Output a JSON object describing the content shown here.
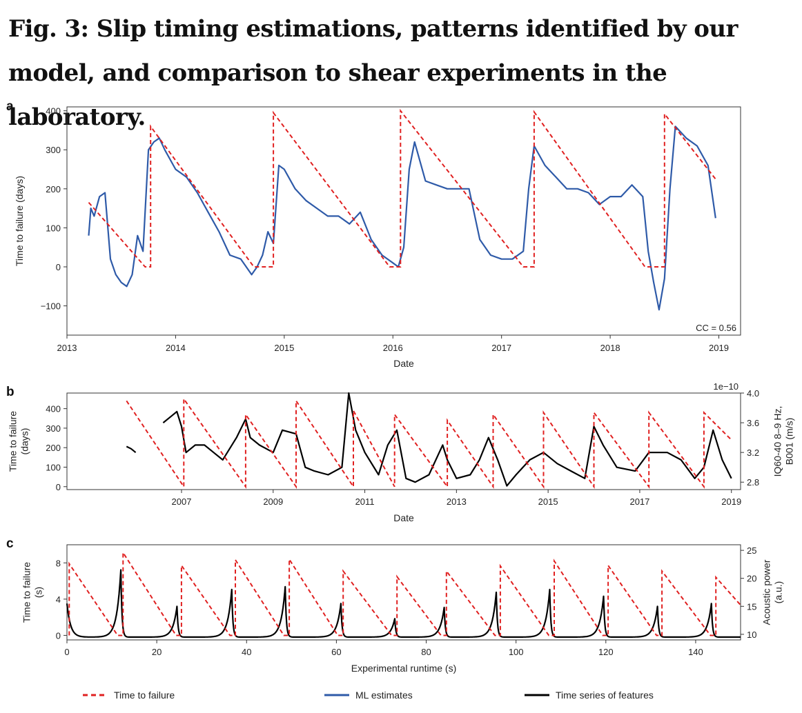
{
  "figure_title": "Fig. 3: Slip timing estimations, patterns identified by our model, and comparison to shear experiments in the laboratory.",
  "colors": {
    "time_to_failure": "#e02020",
    "ml_estimates": "#2e5aa8",
    "features": "#000000"
  },
  "legend": [
    {
      "label": "Time to failure",
      "color": "#e02020",
      "style": "dashed"
    },
    {
      "label": "ML estimates",
      "color": "#2e5aa8",
      "style": "solid"
    },
    {
      "label": "Time series of features",
      "color": "#000000",
      "style": "solid"
    }
  ],
  "chart_data": [
    {
      "panel": "a",
      "type": "line",
      "xlabel": "Date",
      "ylabel": "Time to failure (days)",
      "xlim": [
        2013,
        2019.2
      ],
      "ylim": [
        -175,
        410
      ],
      "x_ticks": [
        "2013",
        "2014",
        "2015",
        "2016",
        "2017",
        "2018",
        "2019"
      ],
      "y_ticks": [
        "400",
        "300",
        "200",
        "100",
        "0",
        "−100"
      ],
      "annotation": "CC = 0.56",
      "series": [
        {
          "name": "Time to failure",
          "style": "dashed",
          "color": "#e02020",
          "x": [
            2013.2,
            2013.72,
            2013.77,
            2013.77,
            2014.72,
            2014.9,
            2014.9,
            2015.97,
            2016.07,
            2016.07,
            2017.2,
            2017.3,
            2017.3,
            2018.32,
            2018.5,
            2018.5,
            2018.97
          ],
          "y": [
            165,
            0,
            0,
            360,
            0,
            0,
            395,
            0,
            0,
            400,
            0,
            0,
            397,
            0,
            0,
            392,
            225
          ]
        },
        {
          "name": "ML estimates",
          "style": "solid",
          "color": "#2e5aa8",
          "x": [
            2013.2,
            2013.22,
            2013.25,
            2013.3,
            2013.35,
            2013.4,
            2013.45,
            2013.5,
            2013.55,
            2013.6,
            2013.65,
            2013.7,
            2013.75,
            2013.8,
            2013.85,
            2013.9,
            2014.0,
            2014.1,
            2014.2,
            2014.3,
            2014.4,
            2014.5,
            2014.6,
            2014.7,
            2014.75,
            2014.8,
            2014.85,
            2014.9,
            2014.95,
            2015.0,
            2015.1,
            2015.2,
            2015.3,
            2015.4,
            2015.5,
            2015.6,
            2015.7,
            2015.8,
            2015.9,
            2016.0,
            2016.05,
            2016.1,
            2016.15,
            2016.2,
            2016.3,
            2016.4,
            2016.5,
            2016.6,
            2016.7,
            2016.8,
            2016.9,
            2017.0,
            2017.1,
            2017.2,
            2017.25,
            2017.3,
            2017.4,
            2017.5,
            2017.6,
            2017.7,
            2017.8,
            2017.9,
            2018.0,
            2018.1,
            2018.2,
            2018.3,
            2018.35,
            2018.4,
            2018.45,
            2018.5,
            2018.55,
            2018.6,
            2018.7,
            2018.8,
            2018.9,
            2018.97
          ],
          "y": [
            80,
            150,
            130,
            180,
            190,
            20,
            -20,
            -40,
            -50,
            -20,
            80,
            40,
            300,
            320,
            330,
            300,
            250,
            230,
            190,
            140,
            90,
            30,
            20,
            -20,
            0,
            30,
            90,
            60,
            260,
            250,
            200,
            170,
            150,
            130,
            130,
            110,
            140,
            70,
            30,
            10,
            0,
            50,
            250,
            320,
            220,
            210,
            200,
            200,
            200,
            70,
            30,
            20,
            20,
            40,
            200,
            310,
            260,
            230,
            200,
            200,
            190,
            160,
            180,
            180,
            210,
            180,
            40,
            -40,
            -110,
            -30,
            200,
            360,
            330,
            310,
            260,
            125
          ]
        }
      ]
    },
    {
      "panel": "b",
      "type": "line",
      "xlabel": "Date",
      "ylabel": "Time to failure\n(days)",
      "ylabel_right": "IQ60-40 8–9 Hz,\nB001 (m/s)",
      "right_axis_scale": "1e−10",
      "xlim": [
        2004.5,
        2019.2
      ],
      "ylim": [
        -15,
        480
      ],
      "ylim_right": [
        2.7,
        4.0
      ],
      "x_ticks": [
        "2007",
        "2009",
        "2011",
        "2013",
        "2015",
        "2017",
        "2019"
      ],
      "y_ticks": [
        "400",
        "300",
        "200",
        "100",
        "0"
      ],
      "y_ticks_right": [
        "4.0",
        "3.6",
        "3.2",
        "2.8"
      ],
      "series": [
        {
          "name": "Time to failure",
          "style": "dashed",
          "color": "#e02020",
          "x": [
            2005.8,
            2007.05,
            2007.05,
            2008.4,
            2008.4,
            2009.5,
            2009.5,
            2010.75,
            2010.75,
            2011.65,
            2011.65,
            2012.8,
            2012.8,
            2013.8,
            2013.8,
            2014.9,
            2014.9,
            2016.0,
            2016.0,
            2017.2,
            2017.2,
            2018.4,
            2018.4,
            2019.0
          ],
          "y": [
            440,
            0,
            450,
            0,
            370,
            0,
            440,
            0,
            390,
            0,
            370,
            0,
            340,
            0,
            370,
            0,
            380,
            0,
            380,
            0,
            380,
            0,
            380,
            240
          ]
        },
        {
          "name": "Time series of features",
          "style": "solid",
          "color": "#000000",
          "x": [
            2005.8,
            2005.9,
            2006.0,
            null,
            2006.6,
            2006.8,
            2006.9,
            2007.0,
            2007.1,
            2007.3,
            2007.5,
            2007.7,
            2007.9,
            2008.2,
            2008.4,
            2008.5,
            2008.7,
            2009.0,
            2009.2,
            2009.5,
            2009.7,
            2009.9,
            2010.2,
            2010.5,
            2010.65,
            2010.8,
            2011.0,
            2011.3,
            2011.5,
            2011.7,
            2011.9,
            2012.1,
            2012.4,
            2012.7,
            2012.8,
            2013.0,
            2013.3,
            2013.5,
            2013.7,
            2013.9,
            2014.1,
            2014.3,
            2014.6,
            2014.9,
            2015.2,
            2015.5,
            2015.8,
            2016.0,
            2016.2,
            2016.5,
            2016.9,
            2017.2,
            2017.6,
            2017.9,
            2018.2,
            2018.4,
            2018.6,
            2018.8,
            2019.0
          ],
          "y": [
            3.28,
            3.25,
            3.2,
            null,
            3.6,
            3.7,
            3.75,
            3.55,
            3.2,
            3.3,
            3.3,
            3.2,
            3.1,
            3.4,
            3.65,
            3.4,
            3.3,
            3.2,
            3.5,
            3.45,
            3.0,
            2.95,
            2.9,
            3.0,
            4.0,
            3.5,
            3.2,
            2.9,
            3.3,
            3.5,
            2.85,
            2.8,
            2.9,
            3.3,
            3.1,
            2.85,
            2.9,
            3.1,
            3.4,
            3.1,
            2.75,
            2.9,
            3.1,
            3.2,
            3.05,
            2.95,
            2.85,
            3.55,
            3.3,
            3.0,
            2.95,
            3.2,
            3.2,
            3.1,
            2.85,
            3.0,
            3.5,
            3.1,
            2.85
          ]
        }
      ]
    },
    {
      "panel": "c",
      "type": "line",
      "xlabel": "Experimental runtime (s)",
      "ylabel": "Time to failure\n(s)",
      "ylabel_right": "Acoustic power\n(a.u.)",
      "xlim": [
        0,
        150
      ],
      "ylim": [
        -0.5,
        10
      ],
      "ylim_right": [
        9,
        26
      ],
      "x_ticks": [
        "0",
        "20",
        "40",
        "60",
        "80",
        "100",
        "120",
        "140"
      ],
      "y_ticks": [
        "8",
        "4",
        "0"
      ],
      "y_ticks_right": [
        "25",
        "20",
        "15",
        "10"
      ],
      "failure_times": [
        0.5,
        12.5,
        25.5,
        37.5,
        49.5,
        61.5,
        73.5,
        84.5,
        96.5,
        108.5,
        120.5,
        132.5,
        144.5
      ],
      "peak_values": [
        22.6,
        24.6,
        22.3,
        23.3,
        23.4,
        21.3,
        20.3,
        21.3,
        22.2,
        23.1,
        22.3,
        21.3,
        20.2
      ],
      "feature_peaks": [
        {
          "t": 12.0,
          "value": 21.5
        },
        {
          "t": 24.5,
          "value": 15.0
        },
        {
          "t": 36.7,
          "value": 18.0
        },
        {
          "t": 48.6,
          "value": 18.5
        },
        {
          "t": 61.0,
          "value": 15.5
        },
        {
          "t": 73.0,
          "value": 12.8
        },
        {
          "t": 84.0,
          "value": 14.8
        },
        {
          "t": 95.6,
          "value": 17.5
        },
        {
          "t": 107.5,
          "value": 18.0
        },
        {
          "t": 119.5,
          "value": 16.8
        },
        {
          "t": 131.5,
          "value": 15.0
        },
        {
          "t": 143.5,
          "value": 15.5
        }
      ],
      "series": [
        {
          "name": "Time to failure",
          "style": "dashed",
          "color": "#e02020"
        },
        {
          "name": "Time series of features",
          "style": "solid",
          "color": "#000000"
        }
      ]
    }
  ]
}
